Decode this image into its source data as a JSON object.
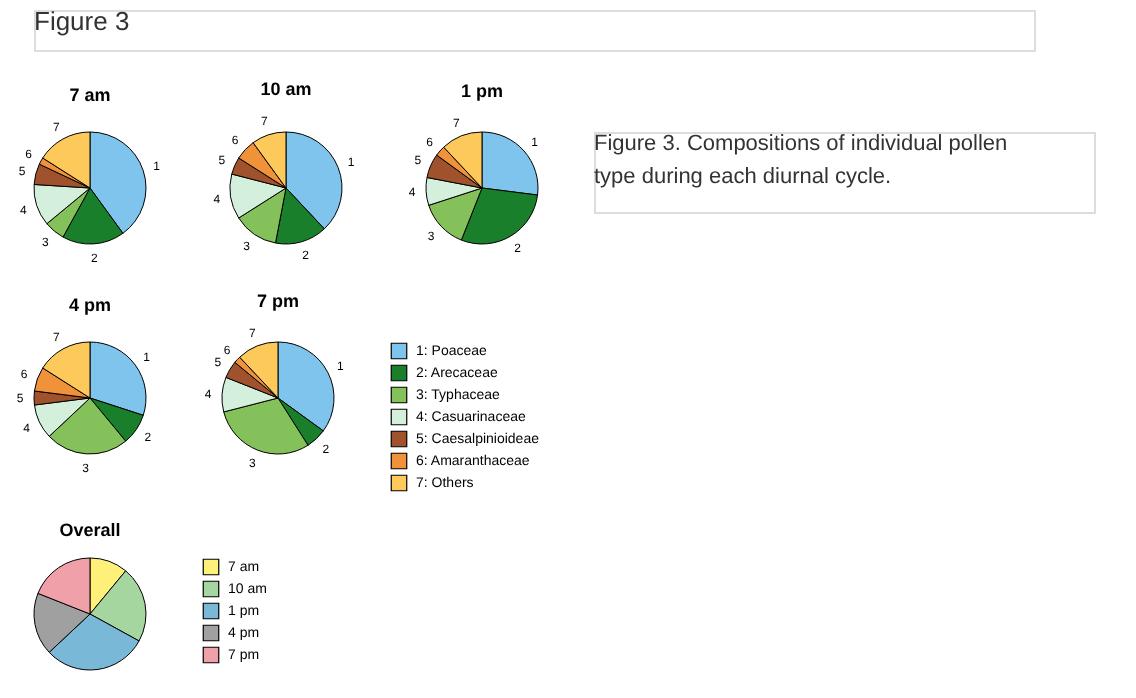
{
  "chart_data": [
    {
      "type": "other",
      "title": "Figure 3",
      "annotations": [
        "Figure 3. Compositions of individual pollen type during each diurnal cycle."
      ]
    },
    {
      "type": "pie",
      "title": "7 am",
      "legend": false,
      "categories": [
        "1",
        "2",
        "3",
        "4",
        "5",
        "6",
        "7"
      ],
      "values": [
        40,
        18,
        6,
        12,
        6,
        2,
        16
      ],
      "colors": [
        "#7fc4ec",
        "#1a7f2a",
        "#84c15a",
        "#d4f0dc",
        "#a0522d",
        "#f0923a",
        "#fdc95a"
      ]
    },
    {
      "type": "pie",
      "title": "10 am",
      "legend": false,
      "categories": [
        "1",
        "2",
        "3",
        "4",
        "5",
        "6",
        "7"
      ],
      "values": [
        38,
        15,
        13,
        13,
        5,
        6,
        10
      ],
      "colors": [
        "#7fc4ec",
        "#1a7f2a",
        "#84c15a",
        "#d4f0dc",
        "#a0522d",
        "#f0923a",
        "#fdc95a"
      ]
    },
    {
      "type": "pie",
      "title": "1 pm",
      "legend": false,
      "categories": [
        "1",
        "2",
        "3",
        "4",
        "5",
        "6",
        "7"
      ],
      "values": [
        27,
        29,
        14,
        8,
        7,
        3,
        12
      ],
      "colors": [
        "#7fc4ec",
        "#1a7f2a",
        "#84c15a",
        "#d4f0dc",
        "#a0522d",
        "#f0923a",
        "#fdc95a"
      ]
    },
    {
      "type": "pie",
      "title": "4 pm",
      "legend": false,
      "categories": [
        "1",
        "2",
        "3",
        "4",
        "5",
        "6",
        "7"
      ],
      "values": [
        30,
        9,
        24,
        10,
        4,
        7,
        16
      ],
      "colors": [
        "#7fc4ec",
        "#1a7f2a",
        "#84c15a",
        "#d4f0dc",
        "#a0522d",
        "#f0923a",
        "#fdc95a"
      ]
    },
    {
      "type": "pie",
      "title": "7 pm",
      "legend": "right",
      "categories": [
        "1: Poaceae",
        "2: Arecaceae",
        "3: Typhaceae",
        "4: Casuarinaceae",
        "5: Caesalpinioideae",
        "6: Amaranthaceae",
        "7: Others"
      ],
      "values": [
        35,
        6,
        30,
        10,
        5,
        2,
        12
      ],
      "colors": [
        "#7fc4ec",
        "#1a7f2a",
        "#84c15a",
        "#d4f0dc",
        "#a0522d",
        "#f0923a",
        "#fdc95a"
      ],
      "annotations": [
        {
          "text": "1",
          "x": "1: Poaceae"
        },
        {
          "text": "2",
          "x": "2: Arecaceae"
        },
        {
          "text": "3",
          "x": "3: Typhaceae"
        },
        {
          "text": "4",
          "x": "4: Casuarinaceae"
        },
        {
          "text": "5",
          "x": "5: Caesalpinioideae"
        },
        {
          "text": "6",
          "x": "6: Amaranthaceae"
        },
        {
          "text": "7",
          "x": "7: Others"
        }
      ]
    },
    {
      "type": "pie",
      "title": "Overall",
      "legend": "right",
      "categories": [
        "7 am",
        "10 am",
        "1 pm",
        "4 pm",
        "7 pm"
      ],
      "values": [
        11,
        22,
        30,
        18,
        19
      ],
      "colors": [
        "#fff07a",
        "#a6d6a0",
        "#7ab8d8",
        "#a0a0a0",
        "#f0a0a8"
      ]
    }
  ]
}
